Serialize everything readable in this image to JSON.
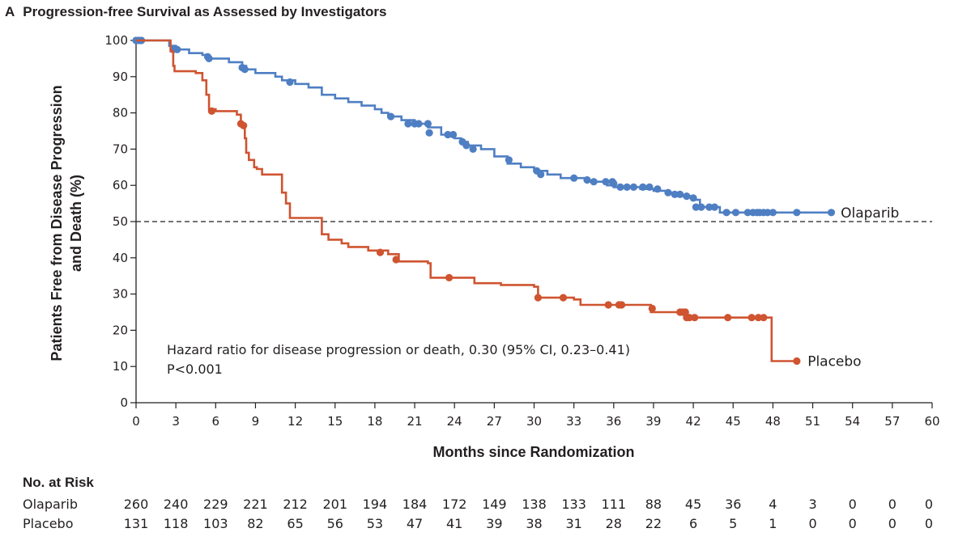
{
  "panel": {
    "letter": "A",
    "title": "Progression-free Survival as Assessed by Investigators"
  },
  "colors": {
    "olaparib": "#4f7fc3",
    "placebo": "#cf5430",
    "axis": "#231f20"
  },
  "chart_data": {
    "type": "line",
    "subtype": "kaplan-meier",
    "xlabel": "Months since Randomization",
    "ylabel_line1": "Patients Free from Disease Progression",
    "ylabel_line2": "and Death (%)",
    "xlim": [
      0,
      60
    ],
    "ylim": [
      0,
      100
    ],
    "xticks": [
      0,
      3,
      6,
      9,
      12,
      15,
      18,
      21,
      24,
      27,
      30,
      33,
      36,
      39,
      42,
      45,
      48,
      51,
      54,
      57,
      60
    ],
    "yticks": [
      0,
      10,
      20,
      30,
      40,
      50,
      60,
      70,
      80,
      90,
      100
    ],
    "reference_line": {
      "y": 50,
      "style": "dashed"
    },
    "annotation_line1": "Hazard ratio for disease progression or death, 0.30 (95% CI, 0.23–0.41)",
    "annotation_line2": "P<0.001",
    "series": [
      {
        "name": "Olaparib",
        "color": "#4f7fc3",
        "steps": [
          [
            0,
            100
          ],
          [
            2.2,
            100
          ],
          [
            2.5,
            98.5
          ],
          [
            3,
            97.5
          ],
          [
            4,
            96.5
          ],
          [
            5,
            96
          ],
          [
            5.5,
            95
          ],
          [
            7,
            94
          ],
          [
            8,
            93
          ],
          [
            8.3,
            92
          ],
          [
            9,
            91
          ],
          [
            10.5,
            90
          ],
          [
            11,
            89
          ],
          [
            12,
            88
          ],
          [
            13,
            87
          ],
          [
            14,
            85
          ],
          [
            15,
            84
          ],
          [
            16,
            83
          ],
          [
            17,
            82
          ],
          [
            18,
            81
          ],
          [
            18.5,
            80
          ],
          [
            19,
            79
          ],
          [
            20,
            78
          ],
          [
            21,
            77
          ],
          [
            22,
            76
          ],
          [
            23,
            74
          ],
          [
            24,
            73
          ],
          [
            24.5,
            72
          ],
          [
            25,
            71
          ],
          [
            26,
            70
          ],
          [
            27,
            68
          ],
          [
            28,
            66
          ],
          [
            29,
            65
          ],
          [
            30,
            64
          ],
          [
            31,
            63
          ],
          [
            32,
            62
          ],
          [
            34,
            61
          ],
          [
            35.5,
            60
          ],
          [
            36,
            59.5
          ],
          [
            38,
            59
          ],
          [
            39,
            58.5
          ],
          [
            40,
            58
          ],
          [
            41,
            57
          ],
          [
            42,
            56
          ],
          [
            42.5,
            54
          ],
          [
            43,
            54
          ],
          [
            44,
            52.5
          ],
          [
            52.5,
            52.5
          ]
        ],
        "censors": [
          [
            0,
            100
          ],
          [
            0.2,
            100
          ],
          [
            0.4,
            100
          ],
          [
            2.8,
            97.5
          ],
          [
            3.1,
            97.5
          ],
          [
            5.4,
            95.5
          ],
          [
            5.5,
            95
          ],
          [
            8.0,
            92.5
          ],
          [
            8.2,
            92
          ],
          [
            11.6,
            88.5
          ],
          [
            19.2,
            79
          ],
          [
            20.5,
            77
          ],
          [
            21.0,
            77
          ],
          [
            21.3,
            77
          ],
          [
            22.0,
            77
          ],
          [
            22.1,
            74.5
          ],
          [
            23.5,
            74
          ],
          [
            23.9,
            74
          ],
          [
            24.6,
            72
          ],
          [
            24.9,
            71
          ],
          [
            25.4,
            70
          ],
          [
            28.1,
            67
          ],
          [
            30.2,
            64
          ],
          [
            30.5,
            63
          ],
          [
            33.0,
            62
          ],
          [
            34.0,
            61.5
          ],
          [
            34.5,
            61
          ],
          [
            35.4,
            61
          ],
          [
            35.9,
            61
          ],
          [
            36.0,
            60.5
          ],
          [
            36.5,
            59.5
          ],
          [
            37.0,
            59.5
          ],
          [
            37.5,
            59.5
          ],
          [
            38.2,
            59.5
          ],
          [
            38.7,
            59.5
          ],
          [
            39.3,
            59
          ],
          [
            40.1,
            58
          ],
          [
            40.6,
            57.5
          ],
          [
            41.0,
            57.5
          ],
          [
            41.5,
            57
          ],
          [
            42.0,
            56.5
          ],
          [
            42.2,
            54
          ],
          [
            42.6,
            54
          ],
          [
            43.2,
            54
          ],
          [
            43.6,
            54
          ],
          [
            44.5,
            52.5
          ],
          [
            45.2,
            52.5
          ],
          [
            46.1,
            52.5
          ],
          [
            46.5,
            52.5
          ],
          [
            46.8,
            52.5
          ],
          [
            47.0,
            52.5
          ],
          [
            47.3,
            52.5
          ],
          [
            47.6,
            52.5
          ],
          [
            48.0,
            52.5
          ],
          [
            49.8,
            52.5
          ],
          [
            52.4,
            52.5
          ]
        ]
      },
      {
        "name": "Placebo",
        "color": "#cf5430",
        "steps": [
          [
            0,
            100
          ],
          [
            2.5,
            100
          ],
          [
            2.6,
            97
          ],
          [
            2.8,
            93
          ],
          [
            2.9,
            91.5
          ],
          [
            4.5,
            91
          ],
          [
            5,
            89
          ],
          [
            5.3,
            85
          ],
          [
            5.5,
            81
          ],
          [
            6,
            80.5
          ],
          [
            7.6,
            79.5
          ],
          [
            7.9,
            77
          ],
          [
            8.1,
            76.5
          ],
          [
            8.2,
            73
          ],
          [
            8.3,
            69
          ],
          [
            8.5,
            67
          ],
          [
            8.9,
            65
          ],
          [
            9.1,
            64.5
          ],
          [
            9.5,
            63
          ],
          [
            10.8,
            63
          ],
          [
            11,
            58
          ],
          [
            11.3,
            55
          ],
          [
            11.6,
            51
          ],
          [
            13.8,
            51
          ],
          [
            14,
            46.5
          ],
          [
            14.5,
            45
          ],
          [
            15.5,
            44
          ],
          [
            16,
            43
          ],
          [
            17.5,
            42
          ],
          [
            19,
            41
          ],
          [
            19.8,
            39
          ],
          [
            21,
            39
          ],
          [
            22,
            38.5
          ],
          [
            22.2,
            34.5
          ],
          [
            25,
            34.5
          ],
          [
            25.5,
            33
          ],
          [
            27.5,
            32.5
          ],
          [
            30,
            32
          ],
          [
            30.3,
            29
          ],
          [
            33,
            28.5
          ],
          [
            33.5,
            27
          ],
          [
            38,
            27
          ],
          [
            38.8,
            25
          ],
          [
            41.5,
            24
          ],
          [
            41.8,
            23.5
          ],
          [
            47.8,
            23.5
          ],
          [
            47.9,
            11.5
          ],
          [
            50,
            11.5
          ]
        ],
        "censors": [
          [
            5.7,
            80.5
          ],
          [
            7.9,
            77
          ],
          [
            8.1,
            76.5
          ],
          [
            18.4,
            41.5
          ],
          [
            19.6,
            39.5
          ],
          [
            23.6,
            34.5
          ],
          [
            30.3,
            29
          ],
          [
            32.2,
            29
          ],
          [
            35.6,
            27
          ],
          [
            36.4,
            27
          ],
          [
            36.6,
            27
          ],
          [
            38.9,
            26
          ],
          [
            41.0,
            25
          ],
          [
            41.2,
            25
          ],
          [
            41.4,
            25
          ],
          [
            41.5,
            23.5
          ],
          [
            41.7,
            23.5
          ],
          [
            42.1,
            23.5
          ],
          [
            44.6,
            23.5
          ],
          [
            46.4,
            23.5
          ],
          [
            46.9,
            23.5
          ],
          [
            47.3,
            23.5
          ],
          [
            49.8,
            11.5
          ]
        ]
      }
    ]
  },
  "risk_table": {
    "title": "No. at Risk",
    "months": [
      0,
      3,
      6,
      9,
      12,
      15,
      18,
      21,
      24,
      27,
      30,
      33,
      36,
      39,
      42,
      45,
      48,
      51,
      54,
      57,
      60
    ],
    "rows": [
      {
        "label": "Olaparib",
        "values": [
          "260",
          "240",
          "229",
          "221",
          "212",
          "201",
          "194",
          "184",
          "172",
          "149",
          "138",
          "133",
          "111",
          "88",
          "45",
          "36",
          "4",
          "3",
          "0",
          "0",
          "0"
        ]
      },
      {
        "label": "Placebo",
        "values": [
          "131",
          "118",
          "103",
          "82",
          "65",
          "56",
          "53",
          "47",
          "41",
          "39",
          "38",
          "31",
          "28",
          "22",
          "6",
          "5",
          "1",
          "0",
          "0",
          "0",
          "0"
        ]
      }
    ]
  }
}
